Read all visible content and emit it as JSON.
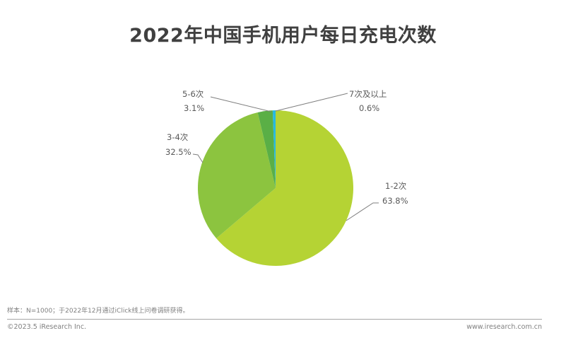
{
  "title": "2022年中国手机用户每日充电次数",
  "chart_data": {
    "type": "pie",
    "title": "2022年中国手机用户每日充电次数",
    "categories": [
      "1-2次",
      "3-4次",
      "5-6次",
      "7次及以上"
    ],
    "values": [
      63.8,
      32.5,
      3.1,
      0.6
    ],
    "unit": "%",
    "colors": [
      "#b5d334",
      "#8cc43f",
      "#5aaf46",
      "#27b9e0"
    ],
    "labels": [
      {
        "name": "1-2次",
        "value": "63.8%"
      },
      {
        "name": "3-4次",
        "value": "32.5%"
      },
      {
        "name": "5-6次",
        "value": "3.1%"
      },
      {
        "name": "7次及以上",
        "value": "0.6%"
      }
    ],
    "start_angle_deg": 0,
    "direction": "clockwise"
  },
  "footer": {
    "note": "样本：N=1000；于2022年12月通过iClick线上问卷调研获得。",
    "copyright": "©2023.5 iResearch Inc.",
    "website": "www.iresearch.com.cn"
  }
}
